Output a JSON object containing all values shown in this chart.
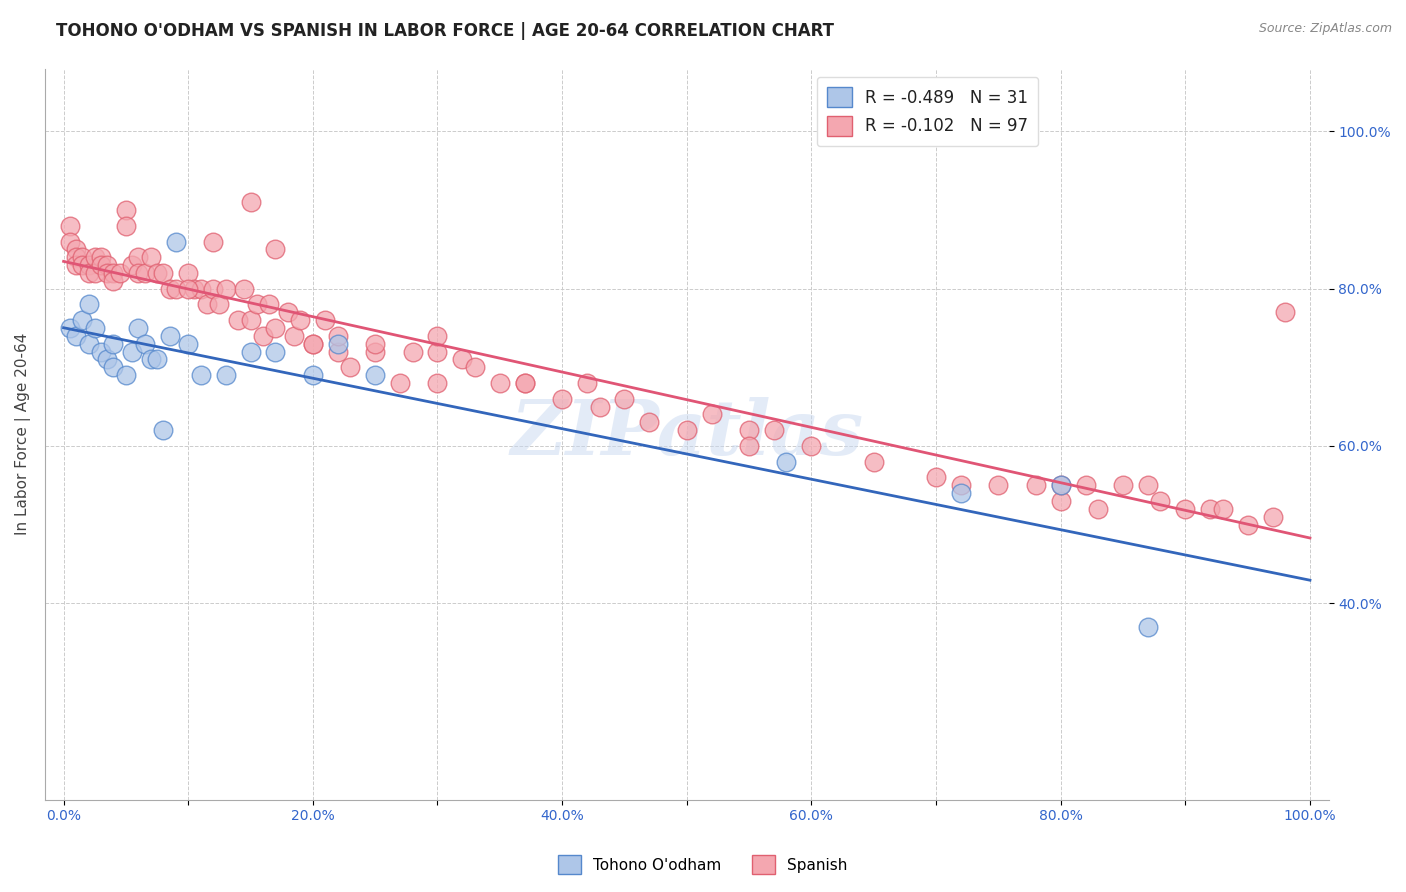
{
  "title": "TOHONO O'ODHAM VS SPANISH IN LABOR FORCE | AGE 20-64 CORRELATION CHART",
  "source": "Source: ZipAtlas.com",
  "ylabel": "In Labor Force | Age 20-64",
  "xlim": [
    -0.015,
    1.015
  ],
  "ylim": [
    0.15,
    1.08
  ],
  "xticks": [
    0.0,
    0.1,
    0.2,
    0.3,
    0.4,
    0.5,
    0.6,
    0.7,
    0.8,
    0.9,
    1.0
  ],
  "xtick_labels": [
    "0.0%",
    "",
    "20.0%",
    "",
    "40.0%",
    "",
    "60.0%",
    "",
    "80.0%",
    "",
    "100.0%"
  ],
  "yticks": [
    0.4,
    0.6,
    0.8,
    1.0
  ],
  "ytick_labels": [
    "40.0%",
    "60.0%",
    "80.0%",
    "100.0%"
  ],
  "tohono_color": "#aec6e8",
  "spanish_color": "#f4a7b0",
  "tohono_edge_color": "#5588cc",
  "spanish_edge_color": "#e06070",
  "tohono_line_color": "#3366bb",
  "spanish_line_color": "#e05575",
  "watermark": "ZIPatlas",
  "R_tohono": -0.489,
  "N_tohono": 31,
  "R_spanish": -0.102,
  "N_spanish": 97,
  "tohono_x": [
    0.005,
    0.01,
    0.015,
    0.02,
    0.02,
    0.025,
    0.03,
    0.035,
    0.04,
    0.04,
    0.05,
    0.055,
    0.06,
    0.065,
    0.07,
    0.075,
    0.08,
    0.085,
    0.09,
    0.1,
    0.11,
    0.13,
    0.15,
    0.17,
    0.2,
    0.22,
    0.25,
    0.58,
    0.72,
    0.8,
    0.87
  ],
  "tohono_y": [
    0.75,
    0.74,
    0.76,
    0.73,
    0.78,
    0.75,
    0.72,
    0.71,
    0.73,
    0.7,
    0.69,
    0.72,
    0.75,
    0.73,
    0.71,
    0.71,
    0.62,
    0.74,
    0.86,
    0.73,
    0.69,
    0.69,
    0.72,
    0.72,
    0.69,
    0.73,
    0.69,
    0.58,
    0.54,
    0.55,
    0.37
  ],
  "spanish_x": [
    0.005,
    0.005,
    0.01,
    0.01,
    0.01,
    0.015,
    0.015,
    0.02,
    0.02,
    0.025,
    0.025,
    0.03,
    0.03,
    0.035,
    0.035,
    0.04,
    0.04,
    0.045,
    0.05,
    0.05,
    0.055,
    0.06,
    0.06,
    0.065,
    0.07,
    0.075,
    0.08,
    0.085,
    0.09,
    0.1,
    0.105,
    0.11,
    0.115,
    0.12,
    0.125,
    0.13,
    0.14,
    0.145,
    0.15,
    0.155,
    0.16,
    0.165,
    0.17,
    0.18,
    0.185,
    0.19,
    0.2,
    0.21,
    0.22,
    0.23,
    0.25,
    0.27,
    0.3,
    0.3,
    0.32,
    0.35,
    0.37,
    0.4,
    0.42,
    0.43,
    0.45,
    0.47,
    0.5,
    0.52,
    0.55,
    0.55,
    0.57,
    0.6,
    0.65,
    0.7,
    0.72,
    0.75,
    0.78,
    0.8,
    0.82,
    0.85,
    0.87,
    0.88,
    0.9,
    0.92,
    0.93,
    0.95,
    0.97,
    0.1,
    0.12,
    0.15,
    0.17,
    0.2,
    0.22,
    0.25,
    0.28,
    0.3,
    0.33,
    0.37,
    0.8,
    0.83,
    0.98
  ],
  "spanish_y": [
    0.88,
    0.86,
    0.85,
    0.84,
    0.83,
    0.84,
    0.83,
    0.83,
    0.82,
    0.84,
    0.82,
    0.84,
    0.83,
    0.83,
    0.82,
    0.82,
    0.81,
    0.82,
    0.9,
    0.88,
    0.83,
    0.84,
    0.82,
    0.82,
    0.84,
    0.82,
    0.82,
    0.8,
    0.8,
    0.82,
    0.8,
    0.8,
    0.78,
    0.8,
    0.78,
    0.8,
    0.76,
    0.8,
    0.76,
    0.78,
    0.74,
    0.78,
    0.75,
    0.77,
    0.74,
    0.76,
    0.73,
    0.76,
    0.72,
    0.7,
    0.72,
    0.68,
    0.72,
    0.68,
    0.71,
    0.68,
    0.68,
    0.66,
    0.68,
    0.65,
    0.66,
    0.63,
    0.62,
    0.64,
    0.62,
    0.6,
    0.62,
    0.6,
    0.58,
    0.56,
    0.55,
    0.55,
    0.55,
    0.53,
    0.55,
    0.55,
    0.55,
    0.53,
    0.52,
    0.52,
    0.52,
    0.5,
    0.51,
    0.8,
    0.86,
    0.91,
    0.85,
    0.73,
    0.74,
    0.73,
    0.72,
    0.74,
    0.7,
    0.68,
    0.55,
    0.52,
    0.77
  ]
}
